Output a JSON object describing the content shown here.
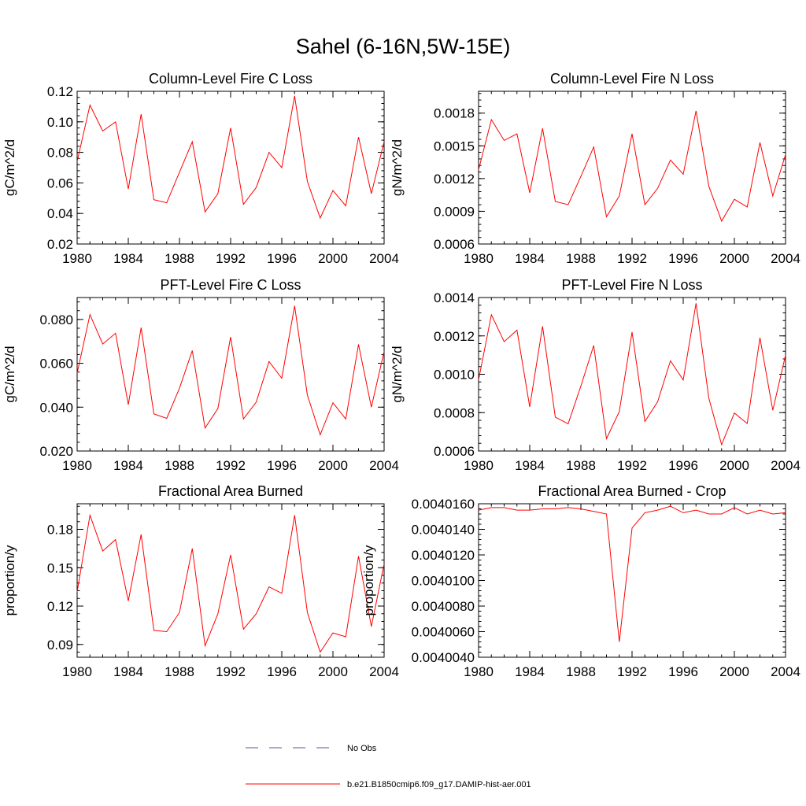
{
  "figure_title": "Sahel (6-16N,5W-15E)",
  "legend": [
    {
      "label": "No Obs",
      "color": "#5555aa",
      "style": "dashed"
    },
    {
      "label": "b.e21.B1850cmip6.f09_g17.DAMIP-hist-aer.001",
      "color": "#ff0000",
      "style": "solid"
    }
  ],
  "chart_data": [
    {
      "type": "line",
      "title": "Column-Level Fire C Loss",
      "ylabel": "gC/m^2/d",
      "xlim": [
        1980,
        2004
      ],
      "ylim": [
        0.02,
        0.12
      ],
      "xticks": [
        1980,
        1984,
        1988,
        1992,
        1996,
        2000,
        2004
      ],
      "xtick_labels": [
        "1980",
        "1984",
        "1988",
        "1992",
        "1996",
        "2000",
        "2004"
      ],
      "yticks": [
        0.02,
        0.04,
        0.06,
        0.08,
        0.1,
        0.12
      ],
      "ytick_labels": [
        "0.02",
        "0.04",
        "0.06",
        "0.08",
        "0.10",
        "0.12"
      ],
      "x": [
        1980,
        1981,
        1982,
        1983,
        1984,
        1985,
        1986,
        1987,
        1988,
        1989,
        1990,
        1991,
        1992,
        1993,
        1994,
        1995,
        1996,
        1997,
        1998,
        1999,
        2000,
        2001,
        2002,
        2003,
        2004
      ],
      "values": [
        0.074,
        0.111,
        0.094,
        0.1,
        0.056,
        0.105,
        0.049,
        0.047,
        0.067,
        0.087,
        0.041,
        0.053,
        0.096,
        0.046,
        0.057,
        0.08,
        0.07,
        0.117,
        0.061,
        0.037,
        0.055,
        0.045,
        0.09,
        0.053,
        0.087
      ],
      "color": "#ff0000"
    },
    {
      "type": "line",
      "title": "Column-Level Fire N Loss",
      "ylabel": "gN/m^2/d",
      "xlim": [
        1980,
        2004
      ],
      "ylim": [
        0.0006,
        0.002
      ],
      "xticks": [
        1980,
        1984,
        1988,
        1992,
        1996,
        2000,
        2004
      ],
      "xtick_labels": [
        "1980",
        "1984",
        "1988",
        "1992",
        "1996",
        "2000",
        "2004"
      ],
      "yticks": [
        0.0006,
        0.0009,
        0.0012,
        0.0015,
        0.0018
      ],
      "ytick_labels": [
        "0.0006",
        "0.0009",
        "0.0012",
        "0.0015",
        "0.0018"
      ],
      "x": [
        1980,
        1981,
        1982,
        1983,
        1984,
        1985,
        1986,
        1987,
        1988,
        1989,
        1990,
        1991,
        1992,
        1993,
        1994,
        1995,
        1996,
        1997,
        1998,
        1999,
        2000,
        2001,
        2002,
        2003,
        2004
      ],
      "values": [
        0.00128,
        0.00174,
        0.00155,
        0.00161,
        0.00107,
        0.00166,
        0.00099,
        0.00096,
        0.00122,
        0.00149,
        0.00085,
        0.00104,
        0.00161,
        0.00096,
        0.00111,
        0.00137,
        0.00124,
        0.00182,
        0.00113,
        0.00081,
        0.00101,
        0.00094,
        0.00153,
        0.00104,
        0.00142
      ],
      "color": "#ff0000"
    },
    {
      "type": "line",
      "title": "PFT-Level Fire C Loss",
      "ylabel": "gC/m^2/d",
      "xlim": [
        1980,
        2004
      ],
      "ylim": [
        0.02,
        0.09
      ],
      "xticks": [
        1980,
        1984,
        1988,
        1992,
        1996,
        2000,
        2004
      ],
      "xtick_labels": [
        "1980",
        "1984",
        "1988",
        "1992",
        "1996",
        "2000",
        "2004"
      ],
      "yticks": [
        0.02,
        0.04,
        0.06,
        0.08
      ],
      "ytick_labels": [
        "0.020",
        "0.040",
        "0.060",
        "0.080"
      ],
      "x": [
        1980,
        1981,
        1982,
        1983,
        1984,
        1985,
        1986,
        1987,
        1988,
        1989,
        1990,
        1991,
        1992,
        1993,
        1994,
        1995,
        1996,
        1997,
        1998,
        1999,
        2000,
        2001,
        2002,
        2003,
        2004
      ],
      "values": [
        0.0555,
        0.0822,
        0.0688,
        0.0737,
        0.0411,
        0.0763,
        0.0369,
        0.0349,
        0.0486,
        0.0658,
        0.0305,
        0.0394,
        0.072,
        0.0346,
        0.0423,
        0.0608,
        0.0532,
        0.0862,
        0.0455,
        0.0274,
        0.042,
        0.0346,
        0.0686,
        0.04,
        0.0654
      ],
      "color": "#ff0000"
    },
    {
      "type": "line",
      "title": "PFT-Level Fire N Loss",
      "ylabel": "gN/m^2/d",
      "xlim": [
        1980,
        2004
      ],
      "ylim": [
        0.0006,
        0.0014
      ],
      "xticks": [
        1980,
        1984,
        1988,
        1992,
        1996,
        2000,
        2004
      ],
      "xtick_labels": [
        "1980",
        "1984",
        "1988",
        "1992",
        "1996",
        "2000",
        "2004"
      ],
      "yticks": [
        0.0006,
        0.0008,
        0.001,
        0.0012,
        0.0014
      ],
      "ytick_labels": [
        "0.0006",
        "0.0008",
        "0.0010",
        "0.0012",
        "0.0014"
      ],
      "x": [
        1980,
        1981,
        1982,
        1983,
        1984,
        1985,
        1986,
        1987,
        1988,
        1989,
        1990,
        1991,
        1992,
        1993,
        1994,
        1995,
        1996,
        1997,
        1998,
        1999,
        2000,
        2001,
        2002,
        2003,
        2004
      ],
      "values": [
        0.00097,
        0.00131,
        0.00117,
        0.00123,
        0.00083,
        0.00125,
        0.000777,
        0.000742,
        0.000939,
        0.00115,
        0.000664,
        0.000806,
        0.00122,
        0.000754,
        0.000857,
        0.00107,
        0.00097,
        0.00137,
        0.000876,
        0.000633,
        0.000798,
        0.000743,
        0.00119,
        0.000812,
        0.0011
      ],
      "color": "#ff0000"
    },
    {
      "type": "line",
      "title": "Fractional Area Burned",
      "ylabel": "proportion/y",
      "xlim": [
        1980,
        2004
      ],
      "ylim": [
        0.08,
        0.2
      ],
      "xticks": [
        1980,
        1984,
        1988,
        1992,
        1996,
        2000,
        2004
      ],
      "xtick_labels": [
        "1980",
        "1984",
        "1988",
        "1992",
        "1996",
        "2000",
        "2004"
      ],
      "yticks": [
        0.09,
        0.12,
        0.15,
        0.18
      ],
      "ytick_labels": [
        "0.09",
        "0.12",
        "0.15",
        "0.18"
      ],
      "x": [
        1980,
        1981,
        1982,
        1983,
        1984,
        1985,
        1986,
        1987,
        1988,
        1989,
        1990,
        1991,
        1992,
        1993,
        1994,
        1995,
        1996,
        1997,
        1998,
        1999,
        2000,
        2001,
        2002,
        2003,
        2004
      ],
      "values": [
        0.131,
        0.191,
        0.163,
        0.172,
        0.124,
        0.176,
        0.101,
        0.1,
        0.115,
        0.165,
        0.089,
        0.114,
        0.16,
        0.102,
        0.114,
        0.135,
        0.13,
        0.191,
        0.115,
        0.084,
        0.099,
        0.096,
        0.159,
        0.104,
        0.153
      ],
      "color": "#ff0000"
    },
    {
      "type": "line",
      "title": "Fractional Area Burned - Crop",
      "ylabel": "proportion/y",
      "xlim": [
        1980,
        2004
      ],
      "ylim": [
        0.004004,
        0.004016
      ],
      "xticks": [
        1980,
        1984,
        1988,
        1992,
        1996,
        2000,
        2004
      ],
      "xtick_labels": [
        "1980",
        "1984",
        "1988",
        "1992",
        "1996",
        "2000",
        "2004"
      ],
      "yticks": [
        0.004004,
        0.004006,
        0.004008,
        0.00401,
        0.004012,
        0.004014,
        0.004016
      ],
      "ytick_labels": [
        "0.0040040",
        "0.0040060",
        "0.0040080",
        "0.0040100",
        "0.0040120",
        "0.0040140",
        "0.0040160"
      ],
      "x": [
        1980,
        1981,
        1982,
        1983,
        1984,
        1985,
        1986,
        1987,
        1988,
        1989,
        1990,
        1991,
        1992,
        1993,
        1994,
        1995,
        1996,
        1997,
        1998,
        1999,
        2000,
        2001,
        2002,
        2003,
        2004
      ],
      "values": [
        0.0040155,
        0.0040157,
        0.0040157,
        0.0040155,
        0.0040155,
        0.0040156,
        0.0040156,
        0.0040157,
        0.0040156,
        0.0040154,
        0.0040152,
        0.0040052,
        0.0040141,
        0.0040153,
        0.0040155,
        0.0040158,
        0.0040153,
        0.0040155,
        0.0040152,
        0.0040152,
        0.0040157,
        0.0040152,
        0.0040155,
        0.0040152,
        0.0040153
      ],
      "color": "#ff0000"
    }
  ]
}
